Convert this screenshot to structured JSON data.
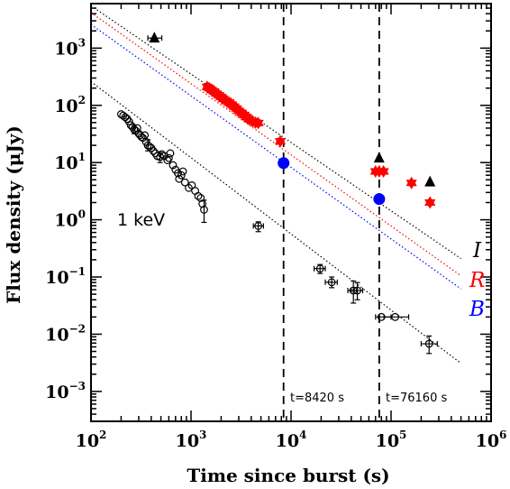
{
  "chart_data": {
    "type": "scatter",
    "xlabel": "Time since burst (s)",
    "ylabel": "Flux density (μJy)",
    "xscale": "log",
    "yscale": "log",
    "xlim": [
      100,
      1000000
    ],
    "ylim": [
      0.0003,
      6000
    ],
    "x_ticks": [
      {
        "base": "10",
        "exp": "2",
        "value": 100
      },
      {
        "base": "10",
        "exp": "3",
        "value": 1000
      },
      {
        "base": "10",
        "exp": "4",
        "value": 10000
      },
      {
        "base": "10",
        "exp": "5",
        "value": 100000
      },
      {
        "base": "10",
        "exp": "6",
        "value": 1000000
      }
    ],
    "y_ticks": [
      {
        "base": "10",
        "exp": "−3",
        "value": 0.001
      },
      {
        "base": "10",
        "exp": "−2",
        "value": 0.01
      },
      {
        "base": "10",
        "exp": "−1",
        "value": 0.1
      },
      {
        "base": "10",
        "exp": "0",
        "value": 1
      },
      {
        "base": "10",
        "exp": "1",
        "value": 10
      },
      {
        "base": "10",
        "exp": "2",
        "value": 100
      },
      {
        "base": "10",
        "exp": "3",
        "value": 1000
      }
    ],
    "annotations": {
      "xray_label": "1 keV",
      "t1_label": "t=8420 s",
      "t2_label": "t=76160 s"
    },
    "vertical_lines": [
      8420,
      76160
    ],
    "bands": [
      {
        "name": "I",
        "color": "#000000"
      },
      {
        "name": "R",
        "color": "#ff0000"
      },
      {
        "name": "B",
        "color": "#0000ff"
      }
    ],
    "model_lines": [
      {
        "band": "I",
        "color": "#000000",
        "points": [
          [
            100,
            5500
          ],
          [
            500000,
            0.21
          ]
        ]
      },
      {
        "band": "R",
        "color": "#ff0000",
        "points": [
          [
            100,
            4200
          ],
          [
            500000,
            0.105
          ]
        ]
      },
      {
        "band": "B",
        "color": "#0000ff",
        "points": [
          [
            100,
            2600
          ],
          [
            500000,
            0.062
          ]
        ]
      },
      {
        "band": "X",
        "color": "#000000",
        "points": [
          [
            100,
            260
          ],
          [
            500000,
            0.0031
          ]
        ]
      }
    ],
    "series": [
      {
        "name": "I",
        "color": "#000000",
        "marker": "triangle",
        "points": [
          {
            "x": 430,
            "y": 1500,
            "xlo": 370,
            "xhi": 510
          },
          {
            "x": 76000,
            "y": 12
          },
          {
            "x": 245000,
            "y": 4.6
          }
        ]
      },
      {
        "name": "R",
        "color": "#ff0000",
        "marker": "star",
        "points": [
          {
            "x": 1450,
            "y": 210
          },
          {
            "x": 1520,
            "y": 200
          },
          {
            "x": 1600,
            "y": 185
          },
          {
            "x": 1700,
            "y": 175
          },
          {
            "x": 1800,
            "y": 160
          },
          {
            "x": 1900,
            "y": 150
          },
          {
            "x": 2000,
            "y": 140
          },
          {
            "x": 2100,
            "y": 130
          },
          {
            "x": 2250,
            "y": 120
          },
          {
            "x": 2400,
            "y": 112
          },
          {
            "x": 2550,
            "y": 103
          },
          {
            "x": 2700,
            "y": 95
          },
          {
            "x": 2850,
            "y": 88
          },
          {
            "x": 3000,
            "y": 80
          },
          {
            "x": 3200,
            "y": 74
          },
          {
            "x": 3400,
            "y": 68
          },
          {
            "x": 3600,
            "y": 62
          },
          {
            "x": 3800,
            "y": 57
          },
          {
            "x": 4100,
            "y": 53
          },
          {
            "x": 4400,
            "y": 50
          },
          {
            "x": 4700,
            "y": 49
          },
          {
            "x": 7800,
            "y": 23.5
          },
          {
            "x": 70000,
            "y": 7
          },
          {
            "x": 76000,
            "y": 7
          },
          {
            "x": 84000,
            "y": 7
          },
          {
            "x": 160000,
            "y": 4.4
          },
          {
            "x": 245000,
            "y": 2
          }
        ]
      },
      {
        "name": "B",
        "color": "#0000ff",
        "marker": "circle",
        "points": [
          {
            "x": 8420,
            "y": 9.8
          },
          {
            "x": 76160,
            "y": 2.3
          }
        ]
      },
      {
        "name": "1 keV",
        "color": "#000000",
        "marker": "open-circle",
        "points": [
          {
            "x": 200,
            "y": 70
          },
          {
            "x": 210,
            "y": 66
          },
          {
            "x": 220,
            "y": 62
          },
          {
            "x": 230,
            "y": 58
          },
          {
            "x": 240,
            "y": 52
          },
          {
            "x": 250,
            "y": 45
          },
          {
            "x": 260,
            "y": 42
          },
          {
            "x": 270,
            "y": 38,
            "ylo": 32,
            "yhi": 45
          },
          {
            "x": 280,
            "y": 36
          },
          {
            "x": 290,
            "y": 40
          },
          {
            "x": 300,
            "y": 32
          },
          {
            "x": 310,
            "y": 30
          },
          {
            "x": 320,
            "y": 28
          },
          {
            "x": 330,
            "y": 27
          },
          {
            "x": 345,
            "y": 30
          },
          {
            "x": 355,
            "y": 23
          },
          {
            "x": 370,
            "y": 20,
            "ylo": 16,
            "yhi": 25
          },
          {
            "x": 385,
            "y": 19
          },
          {
            "x": 400,
            "y": 18
          },
          {
            "x": 420,
            "y": 16
          },
          {
            "x": 440,
            "y": 14.5
          },
          {
            "x": 460,
            "y": 13
          },
          {
            "x": 490,
            "y": 12.5,
            "ylo": 10,
            "yhi": 15
          },
          {
            "x": 510,
            "y": 14
          },
          {
            "x": 540,
            "y": 13
          },
          {
            "x": 580,
            "y": 11
          },
          {
            "x": 600,
            "y": 12
          },
          {
            "x": 620,
            "y": 14.5
          },
          {
            "x": 660,
            "y": 9
          },
          {
            "x": 700,
            "y": 7.5
          },
          {
            "x": 740,
            "y": 6.5
          },
          {
            "x": 760,
            "y": 5.2
          },
          {
            "x": 800,
            "y": 6
          },
          {
            "x": 830,
            "y": 7
          },
          {
            "x": 870,
            "y": 4.5
          },
          {
            "x": 950,
            "y": 3.6
          },
          {
            "x": 1020,
            "y": 4
          },
          {
            "x": 1100,
            "y": 3.2
          },
          {
            "x": 1180,
            "y": 2.6
          },
          {
            "x": 1250,
            "y": 2.4
          },
          {
            "x": 1300,
            "y": 1.9
          },
          {
            "x": 1350,
            "y": 1.5,
            "ylo": 0.9,
            "yhi": 2.2
          },
          {
            "x": 4700,
            "y": 0.78,
            "ylo": 0.62,
            "yhi": 0.92,
            "xlo": 4200,
            "xhi": 5300
          },
          {
            "x": 19500,
            "y": 0.14,
            "ylo": 0.115,
            "yhi": 0.165,
            "xlo": 17000,
            "xhi": 22000
          },
          {
            "x": 25500,
            "y": 0.081,
            "ylo": 0.065,
            "yhi": 0.1,
            "xlo": 22000,
            "xhi": 29000
          },
          {
            "x": 42000,
            "y": 0.058,
            "ylo": 0.035,
            "yhi": 0.085,
            "xlo": 37000,
            "xhi": 46000
          },
          {
            "x": 46000,
            "y": 0.058,
            "ylo": 0.04,
            "yhi": 0.08,
            "xlo": 40000,
            "xhi": 52000
          },
          {
            "x": 80000,
            "y": 0.02,
            "xlo": 70000,
            "xhi": 100000
          },
          {
            "x": 110000,
            "y": 0.02,
            "xlo": 85000,
            "xhi": 150000
          },
          {
            "x": 240000,
            "y": 0.0068,
            "ylo": 0.0046,
            "yhi": 0.0093,
            "xlo": 200000,
            "xhi": 290000
          }
        ]
      }
    ]
  }
}
